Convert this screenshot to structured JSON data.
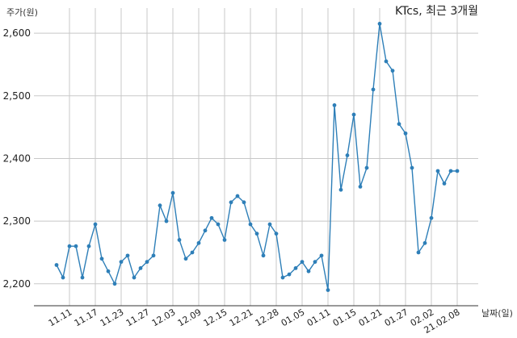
{
  "chart_data": {
    "type": "line",
    "title": "KTcs, 최근 3개월",
    "ylabel": "주가(원)",
    "xlabel": "날짜(일)",
    "ylim": [
      2165,
      2640
    ],
    "grid": true,
    "yticks": [
      2200,
      2300,
      2400,
      2500,
      2600
    ],
    "ytick_labels": [
      "2,200",
      "2,300",
      "2,400",
      "2,500",
      "2,600"
    ],
    "xtick_labels": [
      {
        "label": "11.11",
        "index": 2
      },
      {
        "label": "11.17",
        "index": 6
      },
      {
        "label": "11.23",
        "index": 10
      },
      {
        "label": "11.27",
        "index": 14
      },
      {
        "label": "12.03",
        "index": 18
      },
      {
        "label": "12.09",
        "index": 22
      },
      {
        "label": "12.15",
        "index": 26
      },
      {
        "label": "12.21",
        "index": 30
      },
      {
        "label": "12.28",
        "index": 34
      },
      {
        "label": "01.05",
        "index": 38
      },
      {
        "label": "01.11",
        "index": 42
      },
      {
        "label": "01.15",
        "index": 46
      },
      {
        "label": "01.21",
        "index": 50
      },
      {
        "label": "01.27",
        "index": 54
      },
      {
        "label": "02.02",
        "index": 58
      },
      {
        "label": "21.02.08",
        "index": 62
      }
    ],
    "series": [
      {
        "color": "#2e7fb8",
        "values": [
          2230,
          2210,
          2260,
          2260,
          2210,
          2260,
          2295,
          2240,
          2220,
          2200,
          2235,
          2245,
          2210,
          2225,
          2235,
          2245,
          2325,
          2300,
          2345,
          2270,
          2240,
          2250,
          2265,
          2285,
          2305,
          2295,
          2270,
          2330,
          2340,
          2330,
          2295,
          2280,
          2245,
          2295,
          2280,
          2210,
          2215,
          2225,
          2235,
          2220,
          2235,
          2245,
          2190,
          2485,
          2350,
          2405,
          2470,
          2355,
          2385,
          2510,
          2615,
          2555,
          2540,
          2455,
          2440,
          2385,
          2250,
          2265,
          2305,
          2380,
          2360,
          2380,
          2380
        ]
      }
    ]
  }
}
